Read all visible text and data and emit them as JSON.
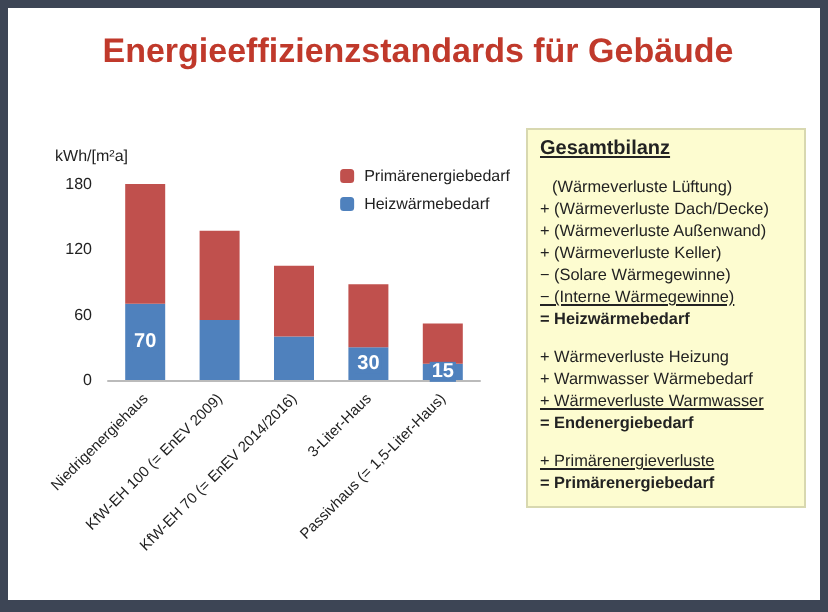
{
  "chart_data": {
    "type": "bar",
    "title": "Energieeffizienzstandards für Gebäude",
    "ylabel": "kWh/[m²a]",
    "categories": [
      "Niedrigenergiehaus",
      "KfW-EH 100 (= EnEV 2009)",
      "KfW-EH 70 (= EnEV 2014/2016)",
      "3-Liter-Haus",
      "Passivhaus (= 1,5-Liter-Haus)"
    ],
    "stacked": true,
    "series": [
      {
        "name": "Heizwärmebedarf",
        "color": "#4f81bd",
        "values": [
          70,
          55,
          40,
          30,
          15
        ],
        "value_labels": [
          "70",
          null,
          null,
          "30",
          "15"
        ]
      },
      {
        "name": "Primärenergiebedarf",
        "color": "#c0504d",
        "values": [
          110,
          82,
          65,
          58,
          37
        ]
      }
    ],
    "ylim": [
      0,
      180
    ],
    "yticks": [
      0,
      60,
      120,
      180
    ],
    "grid": false,
    "legend": "top right",
    "annotations": [
      "Gesamtbilanz",
      "(Wärmeverluste Lüftung)",
      "+ (Wärmeverluste Dach/Decke)",
      "+ (Wärmeverluste Außenwand)",
      "+ (Wärmeverluste Keller)",
      "− (Solare Wärmegewinne)",
      "− (Interne Wärmegewinne)",
      "= Heizwärmebedarf",
      "+ Wärmeverluste Heizung",
      "+ Warmwasser Wärmebedarf",
      "+ Wärmeverluste Warmwasser",
      "= Endenergiebedarf",
      "+ Primärenergieverluste",
      "= Primärenergiebedarf"
    ]
  }
}
